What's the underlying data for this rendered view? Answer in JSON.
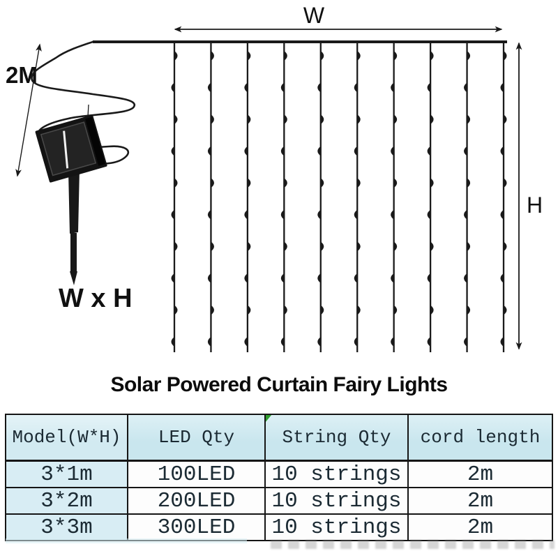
{
  "title": "Solar Powered Curtain Fairy Lights",
  "diagram": {
    "width_label": "W",
    "height_label": "H",
    "cable_length_label": "2M",
    "dimensions_label": "W x H",
    "curtain": {
      "string_count": 10,
      "leds_per_string": 10
    }
  },
  "spec_table": {
    "headers": [
      "Model(W*H)",
      "LED Qty",
      "String Qty",
      "cord length"
    ],
    "rows": [
      [
        "3*1m",
        "100LED",
        "10 strings",
        "2m"
      ],
      [
        "3*2m",
        "200LED",
        "10 strings",
        "2m"
      ],
      [
        "3*3m",
        "300LED",
        "10 strings",
        "2m"
      ]
    ]
  },
  "colors": {
    "line": "#1a1a1a",
    "table_header_bg": "#c9e6ee",
    "table_first_col_bg": "#d8edf4",
    "table_border": "#151515",
    "marker_green": "#2f9e2f"
  }
}
